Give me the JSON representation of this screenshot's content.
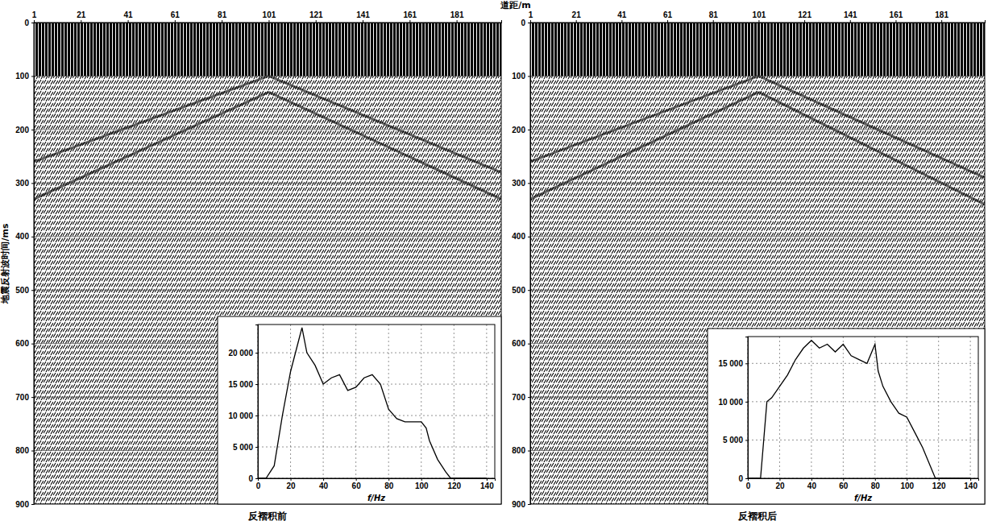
{
  "chart_data": [
    {
      "type": "seismic",
      "title": "反褶积前",
      "x_label": "道距/m",
      "y_label": "地震反射波时间/ms",
      "xlim": [
        1,
        200
      ],
      "xticks": [
        1,
        21,
        41,
        61,
        81,
        101,
        121,
        141,
        161,
        181
      ],
      "ylim": [
        0,
        900
      ],
      "yticks": [
        0,
        100,
        200,
        300,
        400,
        500,
        600,
        700,
        800,
        900
      ],
      "grid": true,
      "noise_band": [
        0,
        100
      ],
      "events": [
        {
          "x": [
            1,
            101
          ],
          "y": [
            260,
            100
          ]
        },
        {
          "x": [
            101,
            200
          ],
          "y": [
            100,
            280
          ]
        },
        {
          "x": [
            1,
            101
          ],
          "y": [
            330,
            130
          ]
        },
        {
          "x": [
            101,
            200
          ],
          "y": [
            130,
            330
          ]
        }
      ]
    },
    {
      "type": "line",
      "x_label": "f/Hz",
      "xlim": [
        0,
        145
      ],
      "xticks": [
        0,
        20,
        40,
        60,
        80,
        100,
        120,
        140
      ],
      "ylim": [
        0,
        24500
      ],
      "yticks": [
        0,
        {
          "value": 5000,
          "label": "5 000"
        },
        {
          "value": 10000,
          "label": "10 000"
        },
        {
          "value": 15000,
          "label": "15 000"
        },
        {
          "value": 20000,
          "label": "20 000"
        }
      ],
      "grid": true,
      "x": [
        0,
        5,
        10,
        15,
        20,
        25,
        27,
        30,
        35,
        40,
        45,
        50,
        55,
        60,
        65,
        70,
        75,
        80,
        85,
        90,
        95,
        100,
        103,
        105,
        110,
        115,
        118,
        140
      ],
      "values": [
        0,
        0,
        2000,
        10000,
        17000,
        22000,
        24000,
        20000,
        18000,
        15000,
        16000,
        16500,
        14000,
        14500,
        16000,
        16500,
        15000,
        11000,
        9500,
        9000,
        9000,
        9000,
        8000,
        6000,
        3000,
        1000,
        0,
        0
      ]
    },
    {
      "type": "seismic",
      "title": "反褶积后",
      "xlim": [
        1,
        200
      ],
      "xticks": [
        1,
        21,
        41,
        61,
        81,
        101,
        121,
        141,
        161,
        181
      ],
      "ylim": [
        0,
        900
      ],
      "yticks": [
        0,
        100,
        200,
        300,
        400,
        500,
        600,
        700,
        800,
        900
      ],
      "grid": true,
      "noise_band": [
        0,
        100
      ],
      "events": [
        {
          "x": [
            1,
            101
          ],
          "y": [
            260,
            100
          ]
        },
        {
          "x": [
            101,
            200
          ],
          "y": [
            100,
            290
          ]
        },
        {
          "x": [
            1,
            101
          ],
          "y": [
            330,
            130
          ]
        },
        {
          "x": [
            101,
            200
          ],
          "y": [
            130,
            340
          ]
        }
      ]
    },
    {
      "type": "line",
      "x_label": "f/Hz",
      "xlim": [
        0,
        145
      ],
      "xticks": [
        0,
        20,
        40,
        60,
        80,
        100,
        120,
        140
      ],
      "ylim": [
        0,
        18500
      ],
      "yticks": [
        0,
        {
          "value": 5000,
          "label": "5 000"
        },
        {
          "value": 10000,
          "label": "10 000"
        },
        {
          "value": 15000,
          "label": "15 000"
        }
      ],
      "grid": true,
      "x": [
        0,
        8,
        10,
        12,
        15,
        20,
        25,
        30,
        35,
        40,
        45,
        50,
        55,
        60,
        65,
        70,
        75,
        80,
        82,
        85,
        90,
        95,
        100,
        105,
        110,
        115,
        118,
        140
      ],
      "values": [
        0,
        0,
        5000,
        10000,
        10500,
        12000,
        13500,
        15500,
        17000,
        18000,
        17000,
        17500,
        16500,
        17500,
        16000,
        15500,
        15000,
        17500,
        14000,
        12000,
        10000,
        8500,
        8000,
        6000,
        4000,
        1500,
        0,
        0
      ]
    }
  ]
}
